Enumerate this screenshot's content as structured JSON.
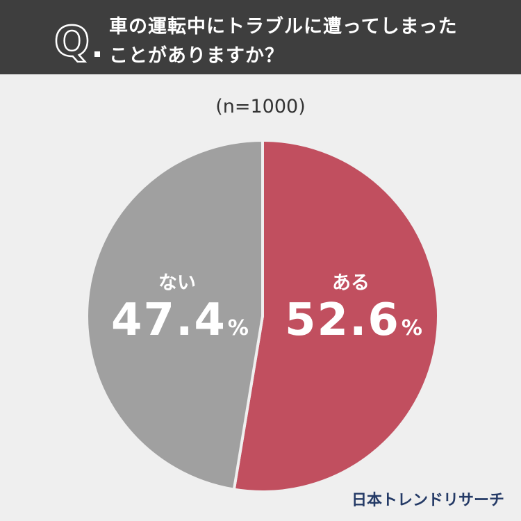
{
  "header": {
    "q_letter": "Q",
    "question_line1": "車の運転中にトラブルに遭ってしまった",
    "question_line2": "ことがありますか？"
  },
  "sample_size": "(n=1000)",
  "chart_data": {
    "type": "pie",
    "title": "",
    "slices": [
      {
        "label": "ある",
        "value": 52.6,
        "color": "#c14f5f"
      },
      {
        "label": "ない",
        "value": 47.4,
        "color": "#a0a0a0"
      }
    ],
    "value_labels": [
      "52.6",
      "47.4"
    ],
    "unit": "%"
  },
  "brand": "日本トレンドリサーチ"
}
